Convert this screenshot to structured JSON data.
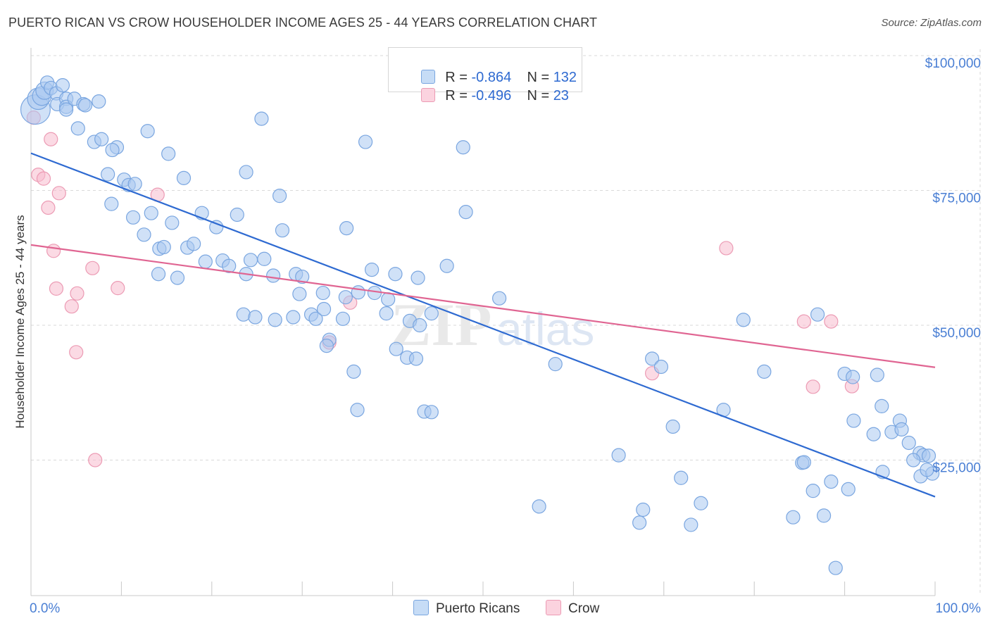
{
  "title": "PUERTO RICAN VS CROW HOUSEHOLDER INCOME AGES 25 - 44 YEARS CORRELATION CHART",
  "source": "Source: ZipAtlas.com",
  "legend": {
    "rows": [
      {
        "r_label": "R = ",
        "r_value": "-0.864",
        "n_label": "N = ",
        "n_value": "132"
      },
      {
        "r_label": "R = ",
        "r_value": "-0.496",
        "n_label": "N = ",
        "n_value": "23"
      }
    ]
  },
  "bottom_legend": [
    "Puerto Ricans",
    "Crow"
  ],
  "watermark": "ZIPatlas",
  "colors": {
    "blue_fill": "#a9c8f0",
    "blue_stroke": "#7aa6e0",
    "blue_line": "#2e6ad1",
    "pink_fill": "#f7bccd",
    "pink_stroke": "#ec9bb4",
    "pink_line": "#e06592",
    "grid": "#d9d9d9",
    "axis_text": "#4a7fd4"
  },
  "chart_data": {
    "type": "scatter",
    "title": "PUERTO RICAN VS CROW HOUSEHOLDER INCOME AGES 25 - 44 YEARS CORRELATION CHART",
    "xlabel": "",
    "ylabel": "Householder Income Ages 25 - 44 years",
    "xlim": [
      0,
      100
    ],
    "ylim": [
      0,
      103000
    ],
    "x_tick_labels": [
      "0.0%",
      "100.0%"
    ],
    "y_ticks": [
      25000,
      50000,
      75000,
      100000
    ],
    "y_tick_labels": [
      "$25,000",
      "$50,000",
      "$75,000",
      "$100,000"
    ],
    "grid": true,
    "legend_position": "top-center",
    "series": [
      {
        "name": "Puerto Ricans",
        "color": "#a9c8f0",
        "trend": {
          "x": [
            0,
            100
          ],
          "y": [
            81900,
            18200
          ]
        },
        "points": [
          [
            0.5,
            90000
          ],
          [
            0.8,
            92000
          ],
          [
            1.2,
            92500
          ],
          [
            1.5,
            93500
          ],
          [
            1.8,
            95000
          ],
          [
            2.2,
            94000
          ],
          [
            2.8,
            93000
          ],
          [
            3.5,
            94500
          ],
          [
            2.9,
            91000
          ],
          [
            3.9,
            92000
          ],
          [
            3.9,
            90500
          ],
          [
            4.8,
            92000
          ],
          [
            5.8,
            91000
          ],
          [
            7.5,
            91500
          ],
          [
            3.9,
            90000
          ],
          [
            6.0,
            90800
          ],
          [
            5.2,
            86500
          ],
          [
            7.0,
            84000
          ],
          [
            7.8,
            84500
          ],
          [
            9.5,
            83000
          ],
          [
            9.0,
            82500
          ],
          [
            12.9,
            86000
          ],
          [
            15.2,
            81800
          ],
          [
            25.5,
            88300
          ],
          [
            37.0,
            84000
          ],
          [
            47.8,
            83000
          ],
          [
            8.5,
            78000
          ],
          [
            10.3,
            77000
          ],
          [
            10.8,
            76000
          ],
          [
            11.5,
            76200
          ],
          [
            16.9,
            77300
          ],
          [
            23.8,
            78400
          ],
          [
            27.5,
            74000
          ],
          [
            8.9,
            72500
          ],
          [
            11.3,
            70000
          ],
          [
            13.3,
            70800
          ],
          [
            15.6,
            69000
          ],
          [
            18.9,
            70800
          ],
          [
            20.5,
            68200
          ],
          [
            22.8,
            70500
          ],
          [
            27.8,
            67600
          ],
          [
            34.9,
            68000
          ],
          [
            48.1,
            71000
          ],
          [
            12.5,
            66800
          ],
          [
            14.2,
            64200
          ],
          [
            14.7,
            64500
          ],
          [
            17.3,
            64400
          ],
          [
            18.0,
            65100
          ],
          [
            19.3,
            61800
          ],
          [
            21.2,
            62000
          ],
          [
            21.9,
            61000
          ],
          [
            23.8,
            59500
          ],
          [
            24.3,
            62100
          ],
          [
            25.8,
            62300
          ],
          [
            14.1,
            59500
          ],
          [
            16.2,
            58800
          ],
          [
            26.8,
            59200
          ],
          [
            29.3,
            59500
          ],
          [
            30.0,
            59000
          ],
          [
            37.7,
            60300
          ],
          [
            40.3,
            59500
          ],
          [
            42.8,
            58800
          ],
          [
            46.0,
            61000
          ],
          [
            36.2,
            56100
          ],
          [
            38.0,
            56000
          ],
          [
            29.7,
            55800
          ],
          [
            32.3,
            56000
          ],
          [
            34.8,
            55200
          ],
          [
            39.5,
            54800
          ],
          [
            51.8,
            55000
          ],
          [
            23.5,
            52000
          ],
          [
            24.8,
            51500
          ],
          [
            27.0,
            51000
          ],
          [
            29.0,
            51500
          ],
          [
            31.0,
            52000
          ],
          [
            31.5,
            51200
          ],
          [
            32.4,
            53000
          ],
          [
            34.5,
            51200
          ],
          [
            39.3,
            52200
          ],
          [
            41.9,
            50800
          ],
          [
            44.3,
            52200
          ],
          [
            43.0,
            50000
          ],
          [
            33.0,
            47300
          ],
          [
            32.7,
            46200
          ],
          [
            40.4,
            45600
          ],
          [
            41.6,
            44000
          ],
          [
            42.6,
            43800
          ],
          [
            35.7,
            41400
          ],
          [
            58.0,
            42800
          ],
          [
            68.7,
            43800
          ],
          [
            69.7,
            42300
          ],
          [
            78.8,
            51000
          ],
          [
            81.1,
            41400
          ],
          [
            87.0,
            52000
          ],
          [
            90.0,
            41000
          ],
          [
            90.9,
            40400
          ],
          [
            93.6,
            40800
          ],
          [
            94.1,
            35000
          ],
          [
            36.1,
            34300
          ],
          [
            43.5,
            34000
          ],
          [
            44.3,
            33900
          ],
          [
            76.6,
            34300
          ],
          [
            71.0,
            31200
          ],
          [
            91.0,
            32300
          ],
          [
            93.2,
            29800
          ],
          [
            95.2,
            30200
          ],
          [
            96.1,
            32300
          ],
          [
            96.3,
            30700
          ],
          [
            97.1,
            28200
          ],
          [
            98.3,
            26300
          ],
          [
            98.7,
            25900
          ],
          [
            99.3,
            25800
          ],
          [
            97.6,
            25000
          ],
          [
            98.4,
            22000
          ],
          [
            99.7,
            22500
          ],
          [
            99.1,
            23200
          ],
          [
            65.0,
            25900
          ],
          [
            85.3,
            24500
          ],
          [
            85.5,
            24600
          ],
          [
            94.2,
            22800
          ],
          [
            71.9,
            21700
          ],
          [
            88.5,
            21000
          ],
          [
            86.5,
            19300
          ],
          [
            90.4,
            19600
          ],
          [
            67.7,
            15800
          ],
          [
            67.3,
            13400
          ],
          [
            74.1,
            17000
          ],
          [
            73.0,
            13000
          ],
          [
            84.3,
            14400
          ],
          [
            87.7,
            14700
          ],
          [
            56.2,
            16400
          ],
          [
            89.0,
            5000
          ]
        ],
        "sizes": {
          "0": 2.2,
          "1": 1.6,
          "2": 1.4,
          "3": 1.3
        }
      },
      {
        "name": "Crow",
        "color": "#f7bccd",
        "trend": {
          "x": [
            0,
            100
          ],
          "y": [
            64900,
            42200
          ]
        },
        "points": [
          [
            0.3,
            88500
          ],
          [
            2.2,
            84500
          ],
          [
            0.8,
            77900
          ],
          [
            1.4,
            77200
          ],
          [
            3.1,
            74500
          ],
          [
            1.9,
            71800
          ],
          [
            14.0,
            74200
          ],
          [
            2.5,
            63800
          ],
          [
            6.8,
            60600
          ],
          [
            2.8,
            56800
          ],
          [
            5.1,
            55900
          ],
          [
            9.6,
            56900
          ],
          [
            4.5,
            53500
          ],
          [
            5.0,
            45000
          ],
          [
            7.1,
            25000
          ],
          [
            33.0,
            46800
          ],
          [
            35.3,
            54200
          ],
          [
            76.9,
            64300
          ],
          [
            68.7,
            41100
          ],
          [
            85.5,
            50700
          ],
          [
            88.5,
            50700
          ],
          [
            86.5,
            38600
          ],
          [
            90.8,
            38700
          ]
        ]
      }
    ]
  }
}
